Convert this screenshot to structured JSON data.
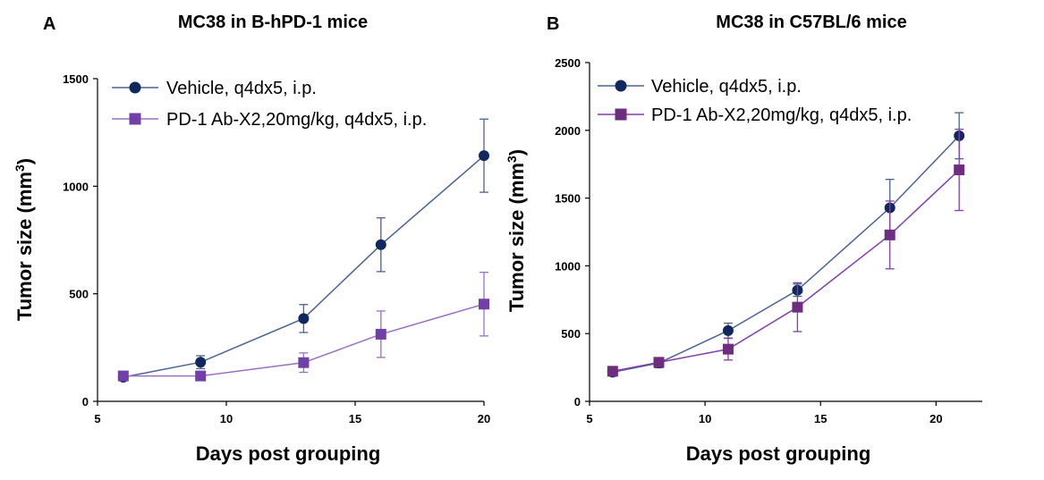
{
  "chart_data": [
    {
      "type": "line",
      "panel_label": "A",
      "title": "MC38 in B-hPD-1 mice",
      "xlabel": "Days post grouping",
      "ylabel": "Tumor size (mm",
      "ylabel_sup": "3",
      "ylabel_end": ")",
      "xlim": [
        5,
        20
      ],
      "ylim": [
        0,
        1500
      ],
      "xticks": [
        5,
        10,
        15,
        20
      ],
      "yticks": [
        0,
        500,
        1000,
        1500
      ],
      "legend_position": "top-left",
      "series": [
        {
          "name": "Vehicle, q4dx5, i.p.",
          "color": "#4a6390",
          "marker_color": "#10285e",
          "marker": "circle",
          "x": [
            6,
            9,
            13,
            16,
            20
          ],
          "y": [
            112,
            182,
            385,
            728,
            1142
          ],
          "err": [
            12,
            30,
            65,
            125,
            170
          ]
        },
        {
          "name": "PD-1 Ab-X2,20mg/kg, q4dx5, i.p.",
          "color": "#9a70c4",
          "marker_color": "#7040a8",
          "marker": "square",
          "x": [
            6,
            9,
            13,
            16,
            20
          ],
          "y": [
            118,
            118,
            180,
            312,
            452
          ],
          "err": [
            10,
            12,
            45,
            108,
            148
          ]
        }
      ]
    },
    {
      "type": "line",
      "panel_label": "B",
      "title": "MC38 in C57BL/6 mice",
      "xlabel": "Days post grouping",
      "ylabel": "Tumor size (mm",
      "ylabel_sup": "3",
      "ylabel_end": ")",
      "xlim": [
        5,
        22
      ],
      "ylim": [
        0,
        2500
      ],
      "xticks": [
        5,
        10,
        15,
        20
      ],
      "yticks": [
        0,
        500,
        1000,
        1500,
        2000,
        2500
      ],
      "legend_position": "top-left",
      "series": [
        {
          "name": "Vehicle, q4dx5, i.p.",
          "color": "#4a6390",
          "marker_color": "#10285e",
          "marker": "circle",
          "x": [
            6,
            8,
            11,
            14,
            18,
            21
          ],
          "y": [
            215,
            283,
            522,
            820,
            1428,
            1960
          ],
          "err": [
            20,
            35,
            55,
            45,
            210,
            170
          ]
        },
        {
          "name": "PD-1 Ab-X2,20mg/kg, q4dx5, i.p.",
          "color": "#8040a8",
          "marker_color": "#6e2d7e",
          "marker": "square",
          "x": [
            6,
            8,
            11,
            14,
            18,
            21
          ],
          "y": [
            222,
            288,
            385,
            695,
            1228,
            1708
          ],
          "err": [
            18,
            30,
            80,
            180,
            250,
            300
          ]
        }
      ]
    }
  ]
}
